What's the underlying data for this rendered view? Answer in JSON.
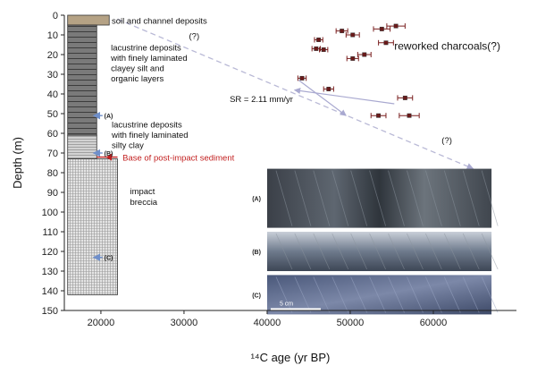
{
  "chart_data": {
    "type": "scatter",
    "xlabel": "¹⁴C age (yr BP)",
    "ylabel": "Depth (m)",
    "xlim": [
      15600,
      70000
    ],
    "ylim": [
      0,
      150
    ],
    "y_inverted": true,
    "x_ticks": [
      20000,
      30000,
      40000,
      50000,
      60000
    ],
    "x_tick_labels": [
      "20000",
      "30000",
      "40000",
      "50000",
      "60000"
    ],
    "y_ticks": [
      0,
      10,
      20,
      30,
      40,
      50,
      60,
      70,
      80,
      90,
      100,
      110,
      120,
      130,
      140,
      150
    ],
    "y_tick_labels": [
      "0",
      "10",
      "20",
      "30",
      "40",
      "50",
      "60",
      "70",
      "80",
      "90",
      "100",
      "110",
      "120",
      "130",
      "140",
      "150"
    ],
    "grid": false,
    "series": [
      {
        "name": "",
        "marker": "square",
        "color": "#6b1a1a",
        "error_color": "#7a1f1f",
        "points": [
          {
            "x": 55500,
            "y": 5.5,
            "xerr": 1100
          },
          {
            "x": 53800,
            "y": 7,
            "xerr": 1000
          },
          {
            "x": 49000,
            "y": 8,
            "xerr": 700
          },
          {
            "x": 50300,
            "y": 10,
            "xerr": 800
          },
          {
            "x": 46200,
            "y": 12.5,
            "xerr": 500
          },
          {
            "x": 54300,
            "y": 14,
            "xerr": 900
          },
          {
            "x": 45900,
            "y": 17,
            "xerr": 500
          },
          {
            "x": 46800,
            "y": 17.5,
            "xerr": 500
          },
          {
            "x": 51700,
            "y": 20,
            "xerr": 800
          },
          {
            "x": 50300,
            "y": 22,
            "xerr": 700
          },
          {
            "x": 44200,
            "y": 32,
            "xerr": 500
          },
          {
            "x": 47400,
            "y": 37.5,
            "xerr": 600
          },
          {
            "x": 56600,
            "y": 42,
            "xerr": 900
          },
          {
            "x": 53400,
            "y": 51,
            "xerr": 900
          },
          {
            "x": 57100,
            "y": 51,
            "xerr": 1200
          }
        ]
      }
    ],
    "trend_line": {
      "x": [
        22000,
        64800
      ],
      "y": [
        2,
        78
      ],
      "color": "#b9b9d6",
      "style": "dashed"
    },
    "sr_arrows": [
      {
        "x": [
          43800,
          49500
        ],
        "y": [
          33,
          51
        ]
      },
      {
        "x": [
          55300,
          43300
        ],
        "y": [
          45,
          38
        ]
      }
    ],
    "lithology": [
      {
        "label": "soil and channel deposits",
        "top": 0,
        "bottom": 5,
        "x_left": 16000,
        "x_right": 21000,
        "fill": "#b5a285"
      },
      {
        "label": "lacustrine deposits with finely laminated clayey silt and organic layers",
        "top": 5,
        "bottom": 61,
        "x_left": 16000,
        "x_right": 19500,
        "fill": "#767676"
      },
      {
        "label": "lacustrine deposits with finely laminated silty clay",
        "top": 61,
        "bottom": 73,
        "x_left": 16000,
        "x_right": 19500,
        "fill": "#cfcfcf"
      },
      {
        "label": "impact breccia",
        "top": 73,
        "bottom": 142,
        "x_left": 16000,
        "x_right": 22000,
        "fill": "#dcdcdc"
      }
    ],
    "sample_markers": [
      {
        "label": "(A)",
        "depth": 51
      },
      {
        "label": "(B)",
        "depth": 70
      },
      {
        "label": "(C)",
        "depth": 123
      }
    ],
    "base_line_depth": 73,
    "annotations": {
      "soil": "soil and channel deposits",
      "lacustrine1": [
        "lacustrine deposits",
        "with finely laminated",
        "clayey silt and",
        "organic layers"
      ],
      "lacustrine2": [
        "lacustrine deposits",
        "with finely laminated",
        "silty clay"
      ],
      "base": "Base of post-impact sediment",
      "breccia": [
        "impact",
        "breccia"
      ],
      "reworked": "reworked charcoals(?)",
      "question": "(?)",
      "sr": "SR = 2.11 mm/yr",
      "scale": "5 cm"
    },
    "photo_panels": [
      {
        "label": "(A)"
      },
      {
        "label": "(B)"
      },
      {
        "label": "(C)"
      }
    ],
    "colors": {
      "sample_arrow": "#6f8fca",
      "base_text": "#c21f1f",
      "axis": "#222222"
    }
  }
}
